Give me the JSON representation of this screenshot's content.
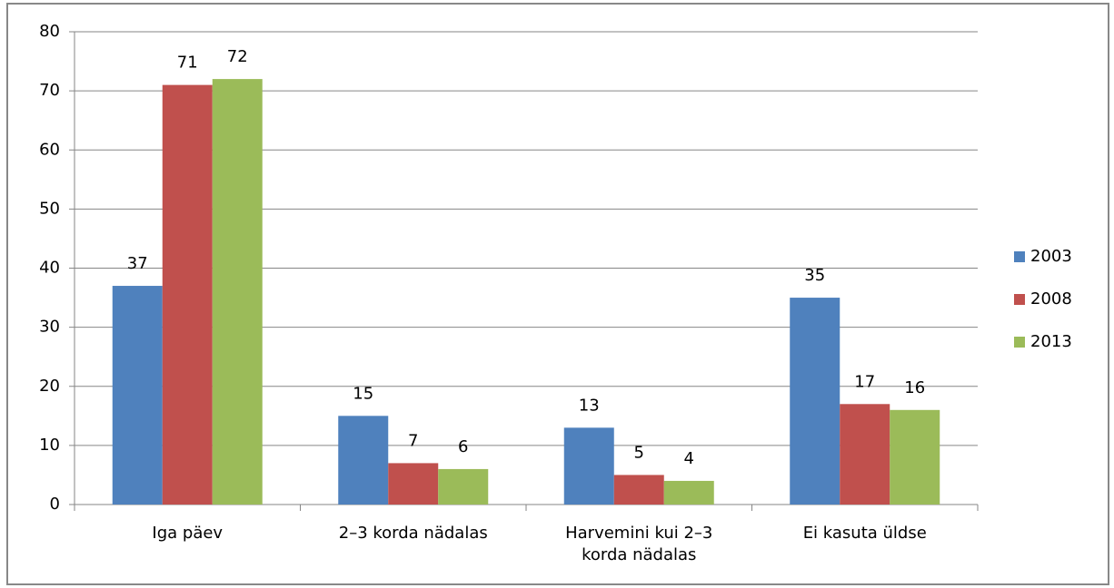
{
  "chart_data": {
    "type": "bar",
    "categories": [
      "Iga päev",
      "2–3 korda nädalas",
      "Harvemini kui 2–3 korda nädalas",
      "Ei kasuta üldse"
    ],
    "series": [
      {
        "name": "2003",
        "color": "#4f81bd",
        "values": [
          37,
          15,
          13,
          35
        ]
      },
      {
        "name": "2008",
        "color": "#c0504d",
        "values": [
          71,
          7,
          5,
          17
        ]
      },
      {
        "name": "2013",
        "color": "#9bbb59",
        "values": [
          72,
          6,
          4,
          16
        ]
      }
    ],
    "ylim": [
      0,
      80
    ],
    "yticks": [
      0,
      10,
      20,
      30,
      40,
      50,
      60,
      70,
      80
    ],
    "grid": true,
    "legend": "right"
  }
}
